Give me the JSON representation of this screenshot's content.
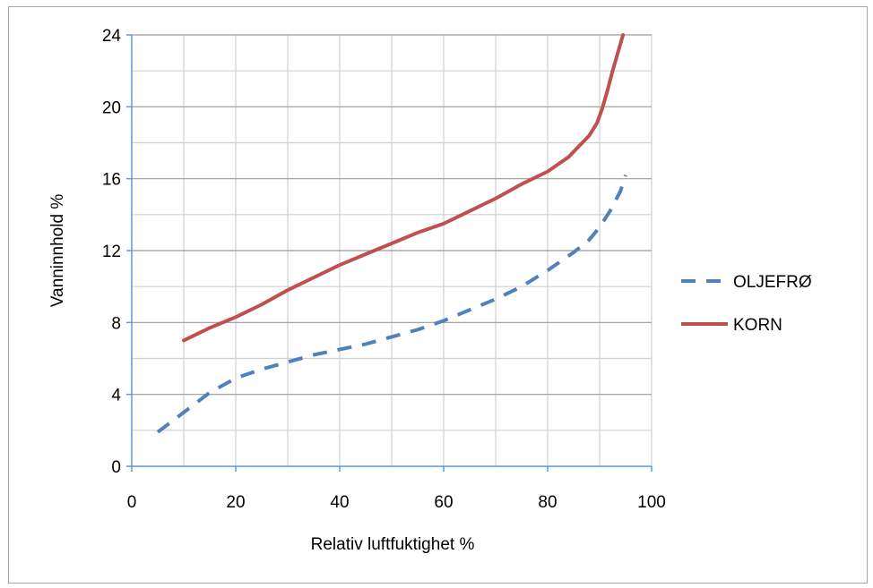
{
  "chart_data": {
    "type": "line",
    "title": "",
    "xlabel": "Relativ luftfuktighet %",
    "ylabel": "Vanninnhold %",
    "xlim": [
      0,
      100
    ],
    "ylim": [
      0,
      24
    ],
    "xticks": [
      0,
      20,
      40,
      60,
      80,
      100
    ],
    "yticks": [
      0,
      4,
      8,
      12,
      16,
      20,
      24
    ],
    "x_minor_step": 10,
    "y_minor_step": 2,
    "grid": true,
    "legend_position": "right",
    "series": [
      {
        "name": "OLJEFRØ",
        "color": "#4f81bd",
        "dash": "dashed",
        "points": [
          [
            5,
            1.9
          ],
          [
            10,
            3.0
          ],
          [
            15,
            4.1
          ],
          [
            20,
            4.9
          ],
          [
            25,
            5.4
          ],
          [
            30,
            5.8
          ],
          [
            35,
            6.2
          ],
          [
            40,
            6.5
          ],
          [
            45,
            6.8
          ],
          [
            50,
            7.2
          ],
          [
            55,
            7.6
          ],
          [
            60,
            8.1
          ],
          [
            65,
            8.7
          ],
          [
            70,
            9.3
          ],
          [
            75,
            10.0
          ],
          [
            80,
            10.9
          ],
          [
            85,
            11.9
          ],
          [
            88,
            12.6
          ],
          [
            90,
            13.3
          ],
          [
            92,
            14.2
          ],
          [
            94,
            15.3
          ],
          [
            95,
            16.2
          ]
        ]
      },
      {
        "name": "KORN",
        "color": "#c0504d",
        "dash": "solid",
        "points": [
          [
            10,
            7.0
          ],
          [
            15,
            7.7
          ],
          [
            20,
            8.3
          ],
          [
            25,
            9.0
          ],
          [
            30,
            9.8
          ],
          [
            35,
            10.5
          ],
          [
            40,
            11.2
          ],
          [
            45,
            11.8
          ],
          [
            50,
            12.4
          ],
          [
            55,
            13.0
          ],
          [
            60,
            13.5
          ],
          [
            65,
            14.2
          ],
          [
            70,
            14.9
          ],
          [
            75,
            15.7
          ],
          [
            80,
            16.4
          ],
          [
            84,
            17.2
          ],
          [
            86,
            17.8
          ],
          [
            88,
            18.4
          ],
          [
            89.5,
            19.1
          ],
          [
            90.5,
            19.9
          ],
          [
            91.5,
            20.9
          ],
          [
            92.5,
            22.0
          ],
          [
            93.5,
            23.0
          ],
          [
            94.5,
            24.0
          ]
        ]
      }
    ]
  }
}
